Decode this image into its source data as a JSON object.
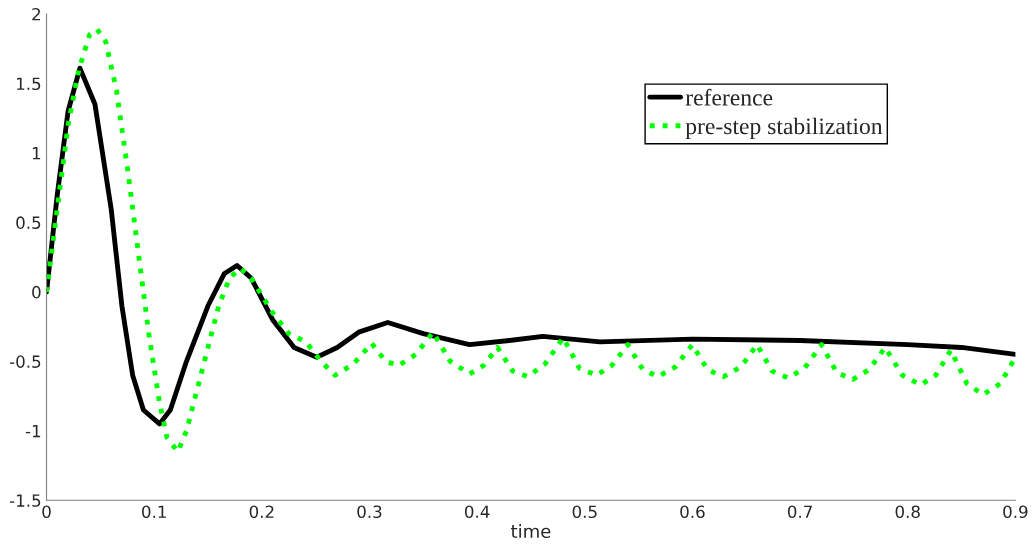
{
  "chart_data": {
    "type": "line",
    "xlabel": "time",
    "xlim": [
      0,
      0.9
    ],
    "ylim": [
      -1.5,
      2
    ],
    "xticks": [
      0,
      0.1,
      0.2,
      0.3,
      0.4,
      0.5,
      0.6,
      0.7,
      0.8,
      0.9
    ],
    "yticks": [
      -1.5,
      -1,
      -0.5,
      0,
      0.5,
      1,
      1.5,
      2
    ],
    "grid": false,
    "legend": "top right",
    "series": [
      {
        "name": "reference",
        "color": "#000000",
        "line_style": "solid",
        "x": [
          0,
          0.01,
          0.02,
          0.031,
          0.045,
          0.06,
          0.07,
          0.08,
          0.09,
          0.105,
          0.115,
          0.13,
          0.15,
          0.165,
          0.177,
          0.19,
          0.21,
          0.23,
          0.251,
          0.27,
          0.29,
          0.317,
          0.35,
          0.393,
          0.43,
          0.461,
          0.514,
          0.6,
          0.7,
          0.8,
          0.85,
          0.9
        ],
        "values": [
          0,
          0.7,
          1.3,
          1.61,
          1.35,
          0.6,
          -0.1,
          -0.6,
          -0.85,
          -0.95,
          -0.85,
          -0.5,
          -0.1,
          0.13,
          0.19,
          0.1,
          -0.2,
          -0.4,
          -0.47,
          -0.4,
          -0.29,
          -0.22,
          -0.3,
          -0.38,
          -0.35,
          -0.32,
          -0.36,
          -0.34,
          -0.35,
          -0.38,
          -0.4,
          -0.45
        ]
      },
      {
        "name": "pre-step stabilization",
        "color": "#00ff00",
        "line_style": "dotted",
        "x": [
          0,
          0.01,
          0.02,
          0.03,
          0.04,
          0.047,
          0.055,
          0.065,
          0.075,
          0.085,
          0.095,
          0.105,
          0.112,
          0.122,
          0.13,
          0.14,
          0.15,
          0.16,
          0.17,
          0.18,
          0.19,
          0.21,
          0.225,
          0.241,
          0.255,
          0.268,
          0.285,
          0.302,
          0.315,
          0.327,
          0.343,
          0.359,
          0.375,
          0.393,
          0.406,
          0.419,
          0.433,
          0.447,
          0.463,
          0.48,
          0.495,
          0.511,
          0.525,
          0.54,
          0.554,
          0.568,
          0.584,
          0.6,
          0.614,
          0.629,
          0.645,
          0.66,
          0.674,
          0.689,
          0.704,
          0.72,
          0.734,
          0.749,
          0.764,
          0.779,
          0.795,
          0.812,
          0.826,
          0.84,
          0.855,
          0.87,
          0.886,
          0.9
        ],
        "values": [
          0,
          0.6,
          1.2,
          1.6,
          1.85,
          1.89,
          1.8,
          1.45,
          0.9,
          0.3,
          -0.3,
          -0.8,
          -1.05,
          -1.15,
          -1.0,
          -0.7,
          -0.4,
          -0.1,
          0.1,
          0.17,
          0.1,
          -0.15,
          -0.3,
          -0.36,
          -0.5,
          -0.6,
          -0.52,
          -0.37,
          -0.5,
          -0.53,
          -0.45,
          -0.29,
          -0.5,
          -0.59,
          -0.53,
          -0.4,
          -0.57,
          -0.61,
          -0.52,
          -0.33,
          -0.55,
          -0.6,
          -0.53,
          -0.38,
          -0.56,
          -0.61,
          -0.54,
          -0.38,
          -0.56,
          -0.61,
          -0.54,
          -0.38,
          -0.57,
          -0.62,
          -0.55,
          -0.38,
          -0.58,
          -0.63,
          -0.56,
          -0.4,
          -0.6,
          -0.67,
          -0.6,
          -0.42,
          -0.66,
          -0.74,
          -0.66,
          -0.47
        ]
      }
    ]
  }
}
